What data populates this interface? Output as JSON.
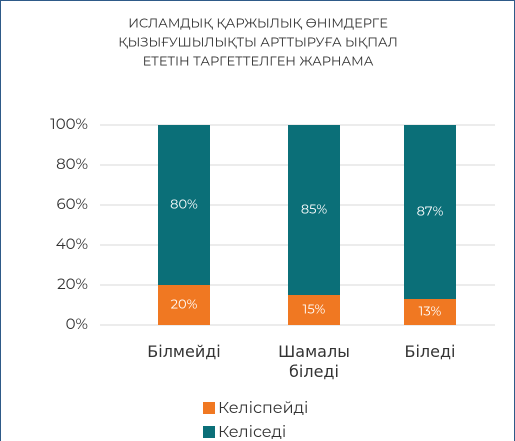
{
  "chart_data": {
    "type": "stacked_bar",
    "title": [
      "ИСЛАМДЫҚ ҚАРЖЫЛЫҚ ӨНІМДЕРГЕ",
      "ҚЫЗЫҒУШЫЛЫҚТЫ АРТТЫРУҒА ЫҚПАЛ",
      "ЕТЕТІН ТАРГЕТТЕЛГЕН ЖАРНАМА"
    ],
    "categories": [
      "Білмейді",
      "Шамалы біледі",
      "Біледі"
    ],
    "series": [
      {
        "name": "Келіспейді",
        "color": "#f07822",
        "values": [
          20,
          15,
          13
        ],
        "value_labels": [
          "20%",
          "15%",
          "13%"
        ]
      },
      {
        "name": "Келіседі",
        "color": "#0b6f78",
        "values": [
          80,
          85,
          87
        ],
        "value_labels": [
          "80%",
          "85%",
          "87%"
        ]
      }
    ],
    "ylim": [
      0,
      100
    ],
    "yticks": [
      {
        "value": 0,
        "label": "0%"
      },
      {
        "value": 20,
        "label": "20%"
      },
      {
        "value": 40,
        "label": "40%"
      },
      {
        "value": 60,
        "label": "60%"
      },
      {
        "value": 80,
        "label": "80%"
      },
      {
        "value": 100,
        "label": "100%"
      }
    ],
    "grid": true,
    "legend": "bottom"
  }
}
